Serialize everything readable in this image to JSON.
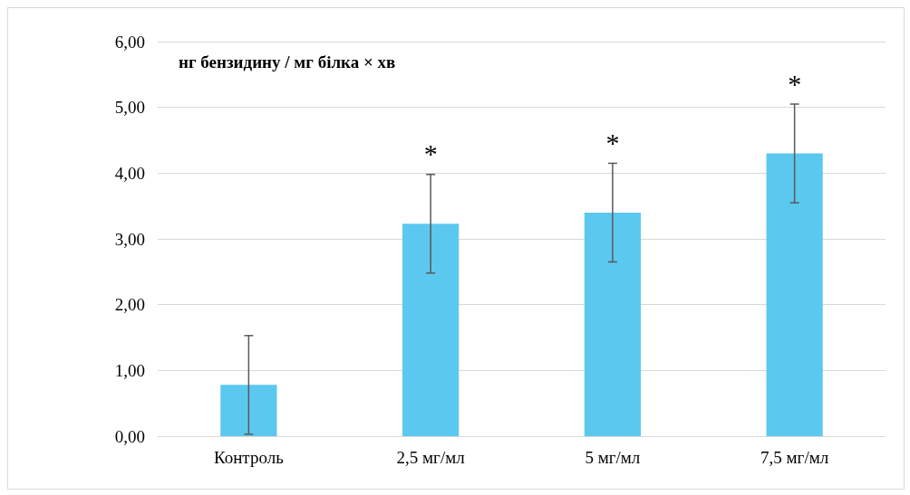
{
  "chart_data": {
    "type": "bar",
    "ylabel": "нг бензидину / мг білка × хв",
    "categories": [
      "Контроль",
      "2,5 мг/мл",
      "5 мг/мл",
      "7,5 мг/мл"
    ],
    "values": [
      0.78,
      3.23,
      3.4,
      4.3
    ],
    "errors": [
      0.75,
      0.75,
      0.75,
      0.75
    ],
    "color": "#5bc8f0",
    "ylim": [
      0,
      6
    ],
    "yticks": [
      {
        "value": 0,
        "label": "0,00"
      },
      {
        "value": 1,
        "label": "1,00"
      },
      {
        "value": 2,
        "label": "2,00"
      },
      {
        "value": 3,
        "label": "3,00"
      },
      {
        "value": 4,
        "label": "4,00"
      },
      {
        "value": 5,
        "label": "5,00"
      },
      {
        "value": 6,
        "label": "6,00"
      }
    ],
    "grid": "y",
    "annotations": [
      "*",
      "*",
      "*"
    ]
  }
}
